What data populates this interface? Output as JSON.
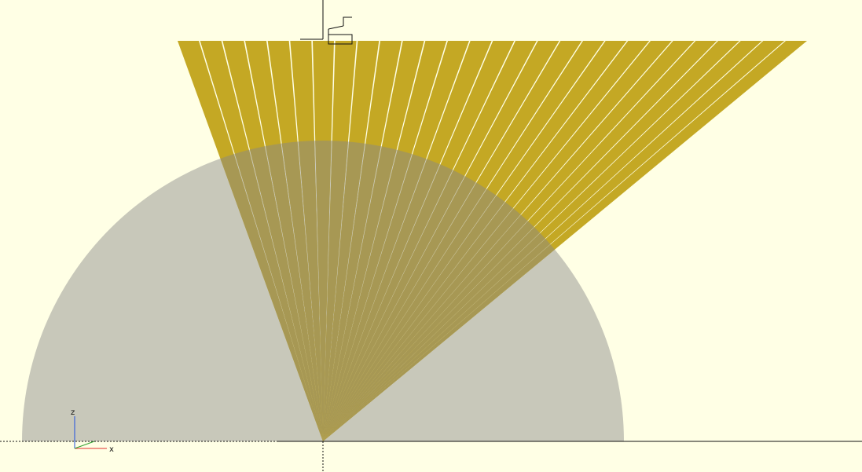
{
  "viewport": {
    "background_color": "#ffffe5",
    "half_disc_color": "#c8c8ba",
    "ray_color": "#c4a824",
    "ray_overlap_color": "#a79854",
    "axis_line_color": "#111111",
    "x_axis_color": "#e03030",
    "z_axis_color": "#2050e0"
  },
  "axes_gizmo": {
    "z_label": "z",
    "x_label": "x"
  },
  "scene": {
    "ray_count": 28,
    "description_objects": [
      "half-disc",
      "fan-of-rays"
    ]
  }
}
